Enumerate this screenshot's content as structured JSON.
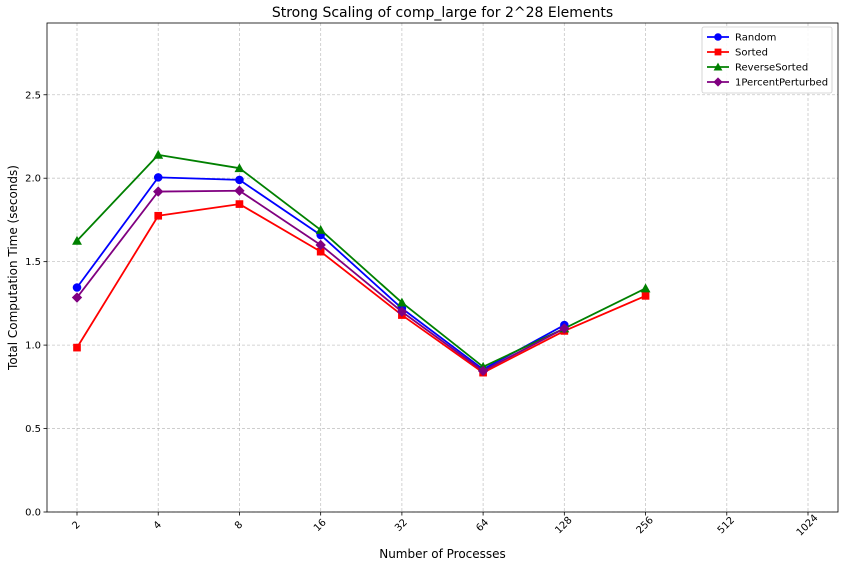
{
  "chart_data": {
    "type": "line",
    "title": "Strong Scaling of comp_large for 2^28 Elements",
    "xlabel": "Number of Processes",
    "ylabel": "Total Computation Time (seconds)",
    "x_scale": "log2",
    "categories": [
      "2",
      "4",
      "8",
      "16",
      "32",
      "64",
      "128",
      "256",
      "512",
      "1024"
    ],
    "x": [
      2,
      4,
      8,
      16,
      32,
      64,
      128,
      256,
      512,
      1024
    ],
    "ylim": [
      0,
      2.93
    ],
    "yticks": [
      0.0,
      0.5,
      1.0,
      1.5,
      2.0,
      2.5
    ],
    "ytick_labels": [
      "0.0",
      "0.5",
      "1.0",
      "1.5",
      "2.0",
      "2.5"
    ],
    "grid": true,
    "legend_position": "top-right",
    "series": [
      {
        "name": "Random",
        "color": "#0000ff",
        "marker": "circle",
        "x": [
          2,
          4,
          8,
          16,
          32,
          64,
          128
        ],
        "values": [
          1.345,
          2.005,
          1.99,
          1.66,
          1.22,
          0.855,
          1.12
        ]
      },
      {
        "name": "Sorted",
        "color": "#ff0000",
        "marker": "square",
        "x": [
          2,
          4,
          8,
          16,
          32,
          64,
          128,
          256
        ],
        "values": [
          0.985,
          1.775,
          1.845,
          1.56,
          1.18,
          0.835,
          1.085,
          1.295
        ]
      },
      {
        "name": "ReverseSorted",
        "color": "#008000",
        "marker": "triangle",
        "x": [
          2,
          4,
          8,
          16,
          32,
          64,
          128,
          256
        ],
        "values": [
          1.625,
          2.14,
          2.06,
          1.69,
          1.255,
          0.87,
          1.1,
          1.34
        ]
      },
      {
        "name": "1PercentPerturbed",
        "color": "#800080",
        "marker": "diamond",
        "x": [
          2,
          4,
          8,
          16,
          32,
          64,
          128
        ],
        "values": [
          1.285,
          1.92,
          1.925,
          1.6,
          1.2,
          0.845,
          1.1
        ]
      }
    ]
  }
}
